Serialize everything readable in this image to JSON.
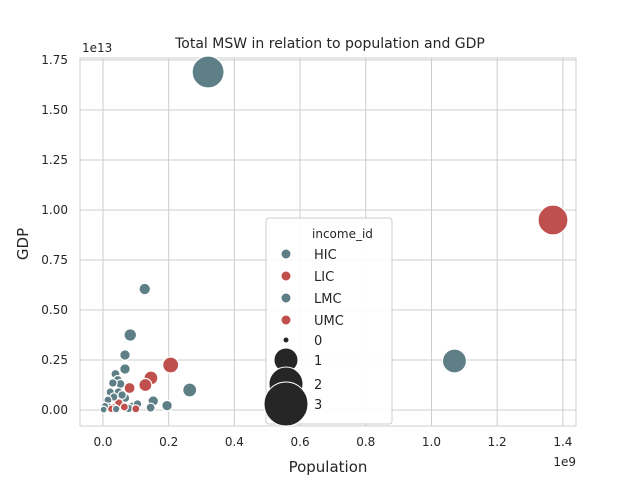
{
  "chart_data": {
    "type": "scatter",
    "title": "Total MSW in relation to population and GDP",
    "xlabel": "Population",
    "ylabel": "GDP",
    "x_offset_label": "1e9",
    "y_offset_label": "1e13",
    "xlim": [
      -0.07,
      1.44
    ],
    "ylim": [
      -0.08,
      1.76
    ],
    "x_scale_note": "x values in units of 1e9",
    "y_scale_note": "y values in units of 1e13",
    "xticks": [
      {
        "v": 0.0,
        "label": "0.0"
      },
      {
        "v": 0.2,
        "label": "0.2"
      },
      {
        "v": 0.4,
        "label": "0.4"
      },
      {
        "v": 0.6,
        "label": "0.6"
      },
      {
        "v": 0.8,
        "label": "0.8"
      },
      {
        "v": 1.0,
        "label": "1.0"
      },
      {
        "v": 1.2,
        "label": "1.2"
      },
      {
        "v": 1.4,
        "label": "1.4"
      }
    ],
    "yticks": [
      {
        "v": 0.0,
        "label": "0.00"
      },
      {
        "v": 0.25,
        "label": "0.25"
      },
      {
        "v": 0.5,
        "label": "0.50"
      },
      {
        "v": 0.75,
        "label": "0.75"
      },
      {
        "v": 1.0,
        "label": "1.00"
      },
      {
        "v": 1.25,
        "label": "1.25"
      },
      {
        "v": 1.5,
        "label": "1.50"
      },
      {
        "v": 1.75,
        "label": "1.75"
      }
    ],
    "grid": true,
    "legend": {
      "placement": "center",
      "title": "income_id",
      "hue_entries": [
        {
          "label": "HIC",
          "color": "#5f7f86"
        },
        {
          "label": "LIC",
          "color": "#c0504d"
        },
        {
          "label": "LMC",
          "color": "#5f7f86"
        },
        {
          "label": "UMC",
          "color": "#c0504d"
        }
      ],
      "size_entries": [
        {
          "label": "0",
          "size": 0
        },
        {
          "label": "1",
          "size": 1
        },
        {
          "label": "2",
          "size": 2
        },
        {
          "label": "3",
          "size": 3
        }
      ]
    },
    "colors": {
      "HIC": "#5f7f86",
      "LIC": "#c0504d",
      "LMC": "#5f7f86",
      "UMC": "#c0504d"
    },
    "points": [
      {
        "x": 0.32,
        "y": 1.69,
        "size": 2.6,
        "group": "HIC"
      },
      {
        "x": 1.37,
        "y": 0.95,
        "size": 2.4,
        "group": "UMC"
      },
      {
        "x": 1.07,
        "y": 0.245,
        "size": 1.8,
        "group": "LMC"
      },
      {
        "x": 0.127,
        "y": 0.605,
        "size": 0.55,
        "group": "HIC"
      },
      {
        "x": 0.083,
        "y": 0.375,
        "size": 0.65,
        "group": "HIC"
      },
      {
        "x": 0.067,
        "y": 0.275,
        "size": 0.45,
        "group": "HIC"
      },
      {
        "x": 0.206,
        "y": 0.225,
        "size": 1.0,
        "group": "UMC"
      },
      {
        "x": 0.067,
        "y": 0.205,
        "size": 0.45,
        "group": "HIC"
      },
      {
        "x": 0.146,
        "y": 0.16,
        "size": 0.8,
        "group": "UMC"
      },
      {
        "x": 0.129,
        "y": 0.125,
        "size": 0.7,
        "group": "UMC"
      },
      {
        "x": 0.264,
        "y": 0.1,
        "size": 0.8,
        "group": "LMC"
      },
      {
        "x": 0.038,
        "y": 0.18,
        "size": 0.3,
        "group": "HIC"
      },
      {
        "x": 0.045,
        "y": 0.15,
        "size": 0.3,
        "group": "HIC"
      },
      {
        "x": 0.053,
        "y": 0.13,
        "size": 0.3,
        "group": "HIC"
      },
      {
        "x": 0.03,
        "y": 0.135,
        "size": 0.25,
        "group": "HIC"
      },
      {
        "x": 0.081,
        "y": 0.11,
        "size": 0.5,
        "group": "UMC"
      },
      {
        "x": 0.022,
        "y": 0.09,
        "size": 0.22,
        "group": "HIC"
      },
      {
        "x": 0.047,
        "y": 0.09,
        "size": 0.25,
        "group": "HIC"
      },
      {
        "x": 0.058,
        "y": 0.075,
        "size": 0.25,
        "group": "HIC"
      },
      {
        "x": 0.033,
        "y": 0.065,
        "size": 0.22,
        "group": "HIC"
      },
      {
        "x": 0.015,
        "y": 0.05,
        "size": 0.2,
        "group": "HIC"
      },
      {
        "x": 0.068,
        "y": 0.06,
        "size": 0.28,
        "group": "HIC"
      },
      {
        "x": 0.153,
        "y": 0.045,
        "size": 0.45,
        "group": "LMC"
      },
      {
        "x": 0.195,
        "y": 0.022,
        "size": 0.45,
        "group": "LMC"
      },
      {
        "x": 0.105,
        "y": 0.03,
        "size": 0.25,
        "group": "LMC"
      },
      {
        "x": 0.058,
        "y": 0.035,
        "size": 0.4,
        "group": "UMC"
      },
      {
        "x": 0.048,
        "y": 0.035,
        "size": 0.25,
        "group": "LIC"
      },
      {
        "x": 0.09,
        "y": 0.018,
        "size": 0.3,
        "group": "HIC"
      },
      {
        "x": 0.078,
        "y": 0.008,
        "size": 0.25,
        "group": "LMC"
      },
      {
        "x": 0.032,
        "y": 0.012,
        "size": 0.2,
        "group": "LIC"
      },
      {
        "x": 0.018,
        "y": 0.015,
        "size": 0.18,
        "group": "HIC"
      },
      {
        "x": 0.012,
        "y": 0.004,
        "size": 0.15,
        "group": "UMC"
      },
      {
        "x": 0.005,
        "y": 0.003,
        "size": 0.15,
        "group": "LIC"
      },
      {
        "x": 0.025,
        "y": 0.006,
        "size": 0.15,
        "group": "UMC"
      },
      {
        "x": 0.04,
        "y": 0.005,
        "size": 0.15,
        "group": "LMC"
      },
      {
        "x": 0.145,
        "y": 0.012,
        "size": 0.3,
        "group": "LMC"
      },
      {
        "x": 0.065,
        "y": 0.015,
        "size": 0.2,
        "group": "LIC"
      },
      {
        "x": 0.1,
        "y": 0.006,
        "size": 0.2,
        "group": "LIC"
      },
      {
        "x": 0.006,
        "y": 0.02,
        "size": 0.12,
        "group": "HIC"
      },
      {
        "x": 0.002,
        "y": 0.002,
        "size": 0.1,
        "group": "HIC"
      }
    ]
  }
}
